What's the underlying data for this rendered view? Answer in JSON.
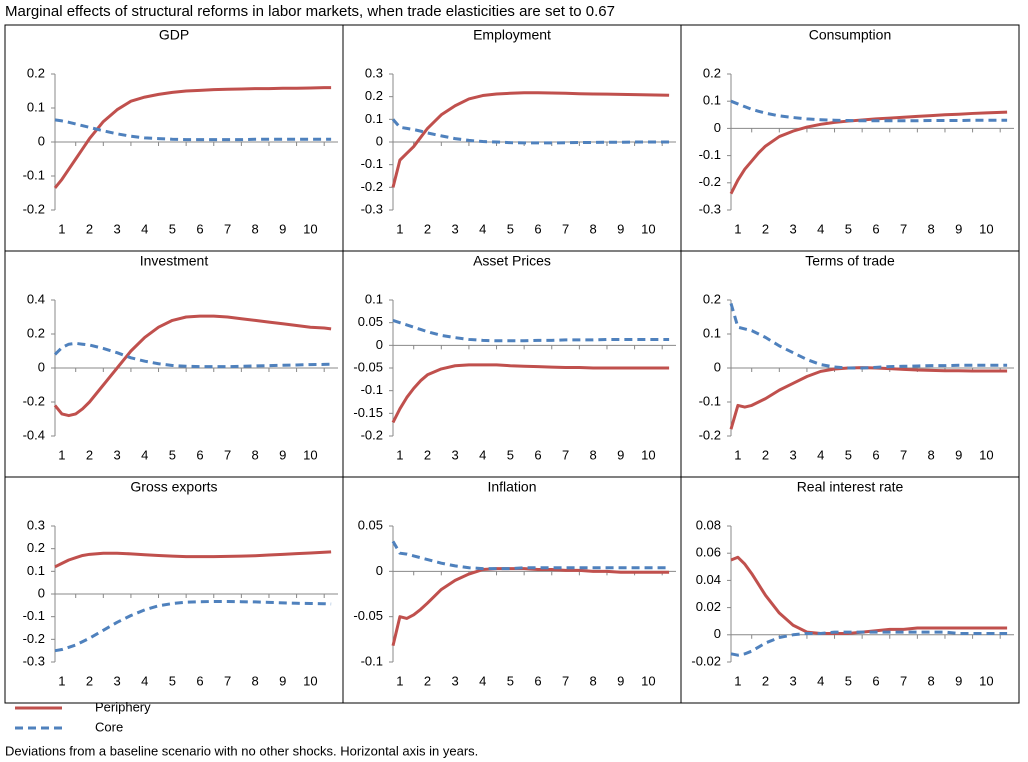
{
  "title": "Marginal effects of structural reforms in labor markets, when trade elasticities are set to 0.67",
  "note": "Deviations from a baseline scenario with no other shocks. Horizontal axis in years.",
  "chart_data": [
    {
      "type": "line",
      "title": "GDP",
      "x": [
        0.75,
        1,
        1.25,
        1.5,
        1.75,
        2,
        2.5,
        3,
        3.5,
        4,
        4.5,
        5,
        5.5,
        6,
        6.5,
        7,
        7.5,
        8,
        8.5,
        9,
        9.5,
        10,
        10.5,
        10.75
      ],
      "xlim": [
        0.75,
        11
      ],
      "xticks": [
        1,
        2,
        3,
        4,
        5,
        6,
        7,
        8,
        9,
        10
      ],
      "ylim": [
        -0.2,
        0.2
      ],
      "yticks": [
        -0.2,
        -0.1,
        0,
        0.1,
        0.2
      ],
      "series": [
        {
          "name": "Periphery",
          "color": "#c0504d",
          "style": "solid",
          "values": [
            -0.135,
            -0.11,
            -0.08,
            -0.05,
            -0.02,
            0.01,
            0.06,
            0.095,
            0.12,
            0.132,
            0.14,
            0.146,
            0.15,
            0.152,
            0.154,
            0.155,
            0.156,
            0.157,
            0.157,
            0.158,
            0.158,
            0.159,
            0.16,
            0.16
          ]
        },
        {
          "name": "Core",
          "color": "#4f81bd",
          "style": "dashed",
          "values": [
            0.065,
            0.062,
            0.058,
            0.053,
            0.048,
            0.043,
            0.033,
            0.024,
            0.017,
            0.012,
            0.01,
            0.008,
            0.007,
            0.007,
            0.007,
            0.007,
            0.007,
            0.008,
            0.008,
            0.008,
            0.008,
            0.008,
            0.008,
            0.008
          ]
        }
      ]
    },
    {
      "type": "line",
      "title": "Employment",
      "x": [
        0.75,
        1,
        1.25,
        1.5,
        1.75,
        2,
        2.5,
        3,
        3.5,
        4,
        4.5,
        5,
        5.5,
        6,
        6.5,
        7,
        7.5,
        8,
        8.5,
        9,
        9.5,
        10,
        10.5,
        10.75
      ],
      "xlim": [
        0.75,
        11
      ],
      "xticks": [
        1,
        2,
        3,
        4,
        5,
        6,
        7,
        8,
        9,
        10
      ],
      "ylim": [
        -0.3,
        0.3
      ],
      "yticks": [
        -0.3,
        -0.2,
        -0.1,
        0,
        0.1,
        0.2,
        0.3
      ],
      "series": [
        {
          "name": "Periphery",
          "color": "#c0504d",
          "style": "solid",
          "values": [
            -0.2,
            -0.08,
            -0.05,
            -0.02,
            0.02,
            0.06,
            0.12,
            0.16,
            0.19,
            0.205,
            0.212,
            0.215,
            0.217,
            0.217,
            0.216,
            0.215,
            0.213,
            0.212,
            0.211,
            0.21,
            0.209,
            0.208,
            0.207,
            0.206
          ]
        },
        {
          "name": "Core",
          "color": "#4f81bd",
          "style": "dashed",
          "values": [
            0.1,
            0.065,
            0.06,
            0.055,
            0.048,
            0.04,
            0.027,
            0.015,
            0.007,
            0.002,
            0,
            -0.003,
            -0.004,
            -0.004,
            -0.004,
            -0.003,
            -0.002,
            -0.002,
            -0.001,
            -0.001,
            0,
            0,
            0,
            0
          ]
        }
      ]
    },
    {
      "type": "line",
      "title": "Consumption",
      "x": [
        0.75,
        1,
        1.25,
        1.5,
        1.75,
        2,
        2.5,
        3,
        3.5,
        4,
        4.5,
        5,
        5.5,
        6,
        6.5,
        7,
        7.5,
        8,
        8.5,
        9,
        9.5,
        10,
        10.5,
        10.75
      ],
      "xlim": [
        0.75,
        11
      ],
      "xticks": [
        1,
        2,
        3,
        4,
        5,
        6,
        7,
        8,
        9,
        10
      ],
      "ylim": [
        -0.3,
        0.2
      ],
      "yticks": [
        -0.3,
        -0.2,
        -0.1,
        0,
        0.1,
        0.2
      ],
      "series": [
        {
          "name": "Periphery",
          "color": "#c0504d",
          "style": "solid",
          "values": [
            -0.24,
            -0.19,
            -0.15,
            -0.12,
            -0.09,
            -0.065,
            -0.03,
            -0.01,
            0.005,
            0.015,
            0.022,
            0.027,
            0.031,
            0.035,
            0.038,
            0.041,
            0.044,
            0.047,
            0.05,
            0.052,
            0.055,
            0.057,
            0.059,
            0.06
          ]
        },
        {
          "name": "Core",
          "color": "#4f81bd",
          "style": "dashed",
          "values": [
            0.1,
            0.09,
            0.08,
            0.07,
            0.063,
            0.056,
            0.046,
            0.04,
            0.035,
            0.032,
            0.03,
            0.029,
            0.028,
            0.028,
            0.028,
            0.028,
            0.028,
            0.029,
            0.029,
            0.029,
            0.03,
            0.03,
            0.03,
            0.03
          ]
        }
      ]
    },
    {
      "type": "line",
      "title": "Investment",
      "x": [
        0.75,
        1,
        1.25,
        1.5,
        1.75,
        2,
        2.5,
        3,
        3.5,
        4,
        4.5,
        5,
        5.5,
        6,
        6.5,
        7,
        7.5,
        8,
        8.5,
        9,
        9.5,
        10,
        10.5,
        10.75
      ],
      "xlim": [
        0.75,
        11
      ],
      "xticks": [
        1,
        2,
        3,
        4,
        5,
        6,
        7,
        8,
        9,
        10
      ],
      "ylim": [
        -0.4,
        0.4
      ],
      "yticks": [
        -0.4,
        -0.2,
        0,
        0.2,
        0.4
      ],
      "series": [
        {
          "name": "Periphery",
          "color": "#c0504d",
          "style": "solid",
          "values": [
            -0.22,
            -0.27,
            -0.28,
            -0.27,
            -0.24,
            -0.2,
            -0.1,
            0,
            0.1,
            0.18,
            0.24,
            0.28,
            0.3,
            0.305,
            0.305,
            0.3,
            0.29,
            0.28,
            0.27,
            0.26,
            0.25,
            0.24,
            0.235,
            0.23
          ]
        },
        {
          "name": "Core",
          "color": "#4f81bd",
          "style": "dashed",
          "values": [
            0.08,
            0.12,
            0.14,
            0.145,
            0.14,
            0.135,
            0.115,
            0.09,
            0.06,
            0.04,
            0.025,
            0.015,
            0.01,
            0.008,
            0.008,
            0.008,
            0.01,
            0.012,
            0.014,
            0.016,
            0.018,
            0.02,
            0.021,
            0.022
          ]
        }
      ]
    },
    {
      "type": "line",
      "title": "Asset Prices",
      "x": [
        0.75,
        1,
        1.25,
        1.5,
        1.75,
        2,
        2.5,
        3,
        3.5,
        4,
        4.5,
        5,
        5.5,
        6,
        6.5,
        7,
        7.5,
        8,
        8.5,
        9,
        9.5,
        10,
        10.5,
        10.75
      ],
      "xlim": [
        0.75,
        11
      ],
      "xticks": [
        1,
        2,
        3,
        4,
        5,
        6,
        7,
        8,
        9,
        10
      ],
      "ylim": [
        -0.2,
        0.1
      ],
      "yticks": [
        -0.2,
        -0.15,
        -0.1,
        -0.05,
        0,
        0.05,
        0.1
      ],
      "series": [
        {
          "name": "Periphery",
          "color": "#c0504d",
          "style": "solid",
          "values": [
            -0.17,
            -0.14,
            -0.115,
            -0.095,
            -0.078,
            -0.065,
            -0.052,
            -0.045,
            -0.043,
            -0.043,
            -0.043,
            -0.045,
            -0.046,
            -0.047,
            -0.048,
            -0.049,
            -0.049,
            -0.05,
            -0.05,
            -0.05,
            -0.05,
            -0.05,
            -0.05,
            -0.05
          ]
        },
        {
          "name": "Core",
          "color": "#4f81bd",
          "style": "dashed",
          "values": [
            0.055,
            0.05,
            0.045,
            0.04,
            0.035,
            0.03,
            0.022,
            0.017,
            0.013,
            0.011,
            0.01,
            0.01,
            0.01,
            0.011,
            0.011,
            0.012,
            0.012,
            0.012,
            0.013,
            0.013,
            0.013,
            0.013,
            0.013,
            0.013
          ]
        }
      ]
    },
    {
      "type": "line",
      "title": "Terms of trade",
      "x": [
        0.75,
        1,
        1.25,
        1.5,
        1.75,
        2,
        2.5,
        3,
        3.5,
        4,
        4.5,
        5,
        5.5,
        6,
        6.5,
        7,
        7.5,
        8,
        8.5,
        9,
        9.5,
        10,
        10.5,
        10.75
      ],
      "xlim": [
        0.75,
        11
      ],
      "xticks": [
        1,
        2,
        3,
        4,
        5,
        6,
        7,
        8,
        9,
        10
      ],
      "ylim": [
        -0.2,
        0.2
      ],
      "yticks": [
        -0.2,
        -0.1,
        0,
        0.1,
        0.2
      ],
      "series": [
        {
          "name": "Periphery",
          "color": "#c0504d",
          "style": "solid",
          "values": [
            -0.18,
            -0.11,
            -0.115,
            -0.11,
            -0.1,
            -0.09,
            -0.065,
            -0.045,
            -0.025,
            -0.01,
            -0.003,
            0,
            0.001,
            0,
            -0.002,
            -0.004,
            -0.006,
            -0.007,
            -0.008,
            -0.008,
            -0.009,
            -0.009,
            -0.009,
            -0.009
          ]
        },
        {
          "name": "Core",
          "color": "#4f81bd",
          "style": "dashed",
          "values": [
            0.19,
            0.12,
            0.115,
            0.11,
            0.1,
            0.09,
            0.065,
            0.045,
            0.025,
            0.01,
            0.003,
            0,
            0,
            0.002,
            0.004,
            0.005,
            0.006,
            0.007,
            0.007,
            0.008,
            0.008,
            0.008,
            0.008,
            0.008
          ]
        }
      ]
    },
    {
      "type": "line",
      "title": "Gross exports",
      "x": [
        0.75,
        1,
        1.25,
        1.5,
        1.75,
        2,
        2.5,
        3,
        3.5,
        4,
        4.5,
        5,
        5.5,
        6,
        6.5,
        7,
        7.5,
        8,
        8.5,
        9,
        9.5,
        10,
        10.5,
        10.75
      ],
      "xlim": [
        0.75,
        11
      ],
      "xticks": [
        1,
        2,
        3,
        4,
        5,
        6,
        7,
        8,
        9,
        10
      ],
      "ylim": [
        -0.3,
        0.3
      ],
      "yticks": [
        -0.3,
        -0.2,
        -0.1,
        0,
        0.1,
        0.2,
        0.3
      ],
      "series": [
        {
          "name": "Periphery",
          "color": "#c0504d",
          "style": "solid",
          "values": [
            0.12,
            0.135,
            0.15,
            0.16,
            0.17,
            0.175,
            0.18,
            0.18,
            0.177,
            0.173,
            0.17,
            0.167,
            0.165,
            0.165,
            0.165,
            0.166,
            0.167,
            0.169,
            0.172,
            0.175,
            0.178,
            0.181,
            0.184,
            0.186
          ]
        },
        {
          "name": "Core",
          "color": "#4f81bd",
          "style": "dashed",
          "values": [
            -0.25,
            -0.245,
            -0.235,
            -0.225,
            -0.21,
            -0.195,
            -0.16,
            -0.125,
            -0.095,
            -0.07,
            -0.052,
            -0.042,
            -0.036,
            -0.034,
            -0.033,
            -0.033,
            -0.034,
            -0.035,
            -0.037,
            -0.039,
            -0.041,
            -0.042,
            -0.043,
            -0.044
          ]
        }
      ]
    },
    {
      "type": "line",
      "title": "Inflation",
      "x": [
        0.75,
        1,
        1.25,
        1.5,
        1.75,
        2,
        2.5,
        3,
        3.5,
        4,
        4.5,
        5,
        5.5,
        6,
        6.5,
        7,
        7.5,
        8,
        8.5,
        9,
        9.5,
        10,
        10.5,
        10.75
      ],
      "xlim": [
        0.75,
        11
      ],
      "xticks": [
        1,
        2,
        3,
        4,
        5,
        6,
        7,
        8,
        9,
        10
      ],
      "ylim": [
        -0.1,
        0.05
      ],
      "yticks": [
        -0.1,
        -0.05,
        0,
        0.05
      ],
      "series": [
        {
          "name": "Periphery",
          "color": "#c0504d",
          "style": "solid",
          "values": [
            -0.082,
            -0.05,
            -0.052,
            -0.048,
            -0.042,
            -0.035,
            -0.02,
            -0.01,
            -0.003,
            0.002,
            0.003,
            0.003,
            0.003,
            0.002,
            0.002,
            0.001,
            0.001,
            0,
            0,
            -0.001,
            -0.001,
            -0.001,
            -0.001,
            -0.001
          ]
        },
        {
          "name": "Core",
          "color": "#4f81bd",
          "style": "dashed",
          "values": [
            0.033,
            0.02,
            0.019,
            0.017,
            0.015,
            0.013,
            0.009,
            0.006,
            0.004,
            0.003,
            0.003,
            0.003,
            0.004,
            0.004,
            0.004,
            0.004,
            0.004,
            0.004,
            0.004,
            0.004,
            0.004,
            0.004,
            0.004,
            0.004
          ]
        }
      ]
    },
    {
      "type": "line",
      "title": "Real interest rate",
      "x": [
        0.75,
        1,
        1.25,
        1.5,
        1.75,
        2,
        2.5,
        3,
        3.5,
        4,
        4.5,
        5,
        5.5,
        6,
        6.5,
        7,
        7.5,
        8,
        8.5,
        9,
        9.5,
        10,
        10.5,
        10.75
      ],
      "xlim": [
        0.75,
        11
      ],
      "xticks": [
        1,
        2,
        3,
        4,
        5,
        6,
        7,
        8,
        9,
        10
      ],
      "ylim": [
        -0.02,
        0.08
      ],
      "yticks": [
        -0.02,
        0,
        0.02,
        0.04,
        0.06,
        0.08
      ],
      "series": [
        {
          "name": "Periphery",
          "color": "#c0504d",
          "style": "solid",
          "values": [
            0.055,
            0.057,
            0.052,
            0.045,
            0.037,
            0.029,
            0.016,
            0.007,
            0.002,
            0.001,
            0.001,
            0.001,
            0.002,
            0.003,
            0.004,
            0.004,
            0.005,
            0.005,
            0.005,
            0.005,
            0.005,
            0.005,
            0.005,
            0.005
          ]
        },
        {
          "name": "Core",
          "color": "#4f81bd",
          "style": "dashed",
          "values": [
            -0.014,
            -0.015,
            -0.014,
            -0.012,
            -0.009,
            -0.006,
            -0.002,
            0,
            0.001,
            0.001,
            0.002,
            0.002,
            0.002,
            0.002,
            0.002,
            0.002,
            0.002,
            0.002,
            0.002,
            0.001,
            0.001,
            0.001,
            0.001,
            0.001
          ]
        }
      ]
    }
  ]
}
